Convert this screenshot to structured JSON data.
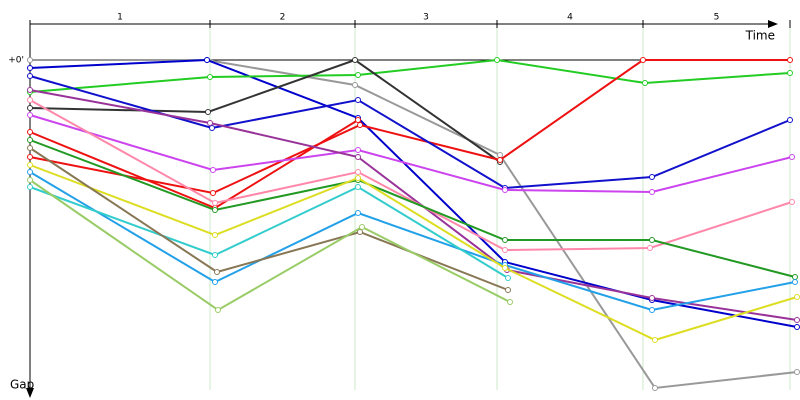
{
  "chart_data": {
    "type": "line",
    "x_label": "Time",
    "y_label": "Gap",
    "categories": [
      "1",
      "2",
      "3",
      "4",
      "5"
    ],
    "lap_edges": [
      0,
      180,
      325,
      467,
      613,
      760
    ],
    "xlim": [
      0,
      770
    ],
    "ylim": [
      0,
      330
    ],
    "yticks": [
      {
        "value": 0,
        "label": "+0'"
      }
    ],
    "series": [
      {
        "color": "#999999",
        "x": [
          0,
          177,
          325,
          470,
          625,
          767
        ],
        "values": [
          0,
          0,
          25,
          95,
          328,
          312
        ]
      },
      {
        "color": "#0000cc",
        "x": [
          0,
          177,
          328,
          475,
          622,
          767
        ],
        "values": [
          8,
          0,
          58,
          202,
          240,
          267
        ]
      },
      {
        "color": "#22cc22",
        "x": [
          0,
          180,
          328,
          467,
          615,
          760
        ],
        "values": [
          32,
          17,
          15,
          0,
          23,
          13
        ]
      },
      {
        "color": "#333333",
        "x": [
          0,
          178,
          325,
          470
        ],
        "values": [
          48,
          52,
          0,
          102
        ]
      },
      {
        "color": "#ee1111",
        "x": [
          0,
          183,
          330,
          470,
          613,
          760
        ],
        "values": [
          97,
          133,
          65,
          100,
          0,
          0
        ]
      },
      {
        "color": "#ee1111",
        "x": [
          0,
          185,
          328
        ],
        "values": [
          72,
          148,
          60
        ]
      },
      {
        "color": "#1111cc",
        "x": [
          0,
          182,
          328,
          475,
          622,
          760
        ],
        "values": [
          16,
          68,
          40,
          128,
          117,
          60
        ]
      },
      {
        "color": "#cc44ee",
        "x": [
          0,
          183,
          328,
          475,
          622,
          762
        ],
        "values": [
          55,
          110,
          90,
          130,
          132,
          97
        ]
      },
      {
        "color": "#993399",
        "x": [
          0,
          180,
          328,
          477,
          622,
          767
        ],
        "values": [
          30,
          63,
          97,
          210,
          238,
          260
        ]
      },
      {
        "color": "#ff88aa",
        "x": [
          0,
          185,
          328,
          475,
          620,
          762
        ],
        "values": [
          40,
          143,
          112,
          190,
          188,
          142
        ]
      },
      {
        "color": "#229922",
        "x": [
          0,
          185,
          328,
          475,
          622,
          765
        ],
        "values": [
          80,
          150,
          120,
          180,
          180,
          217
        ]
      },
      {
        "color": "#22a0e8",
        "x": [
          0,
          185,
          328,
          475,
          622,
          765
        ],
        "values": [
          112,
          222,
          153,
          205,
          250,
          222
        ]
      },
      {
        "color": "#dddd22",
        "x": [
          0,
          185,
          328,
          475,
          625,
          767
        ],
        "values": [
          105,
          175,
          118,
          208,
          280,
          237
        ]
      },
      {
        "color": "#33cccc",
        "x": [
          0,
          185,
          328,
          478
        ],
        "values": [
          127,
          195,
          127,
          218
        ]
      },
      {
        "color": "#887755",
        "x": [
          0,
          187,
          330,
          478
        ],
        "values": [
          88,
          212,
          172,
          230
        ]
      },
      {
        "color": "#99cc66",
        "x": [
          0,
          188,
          332,
          480
        ],
        "values": [
          120,
          250,
          167,
          242
        ]
      }
    ]
  }
}
